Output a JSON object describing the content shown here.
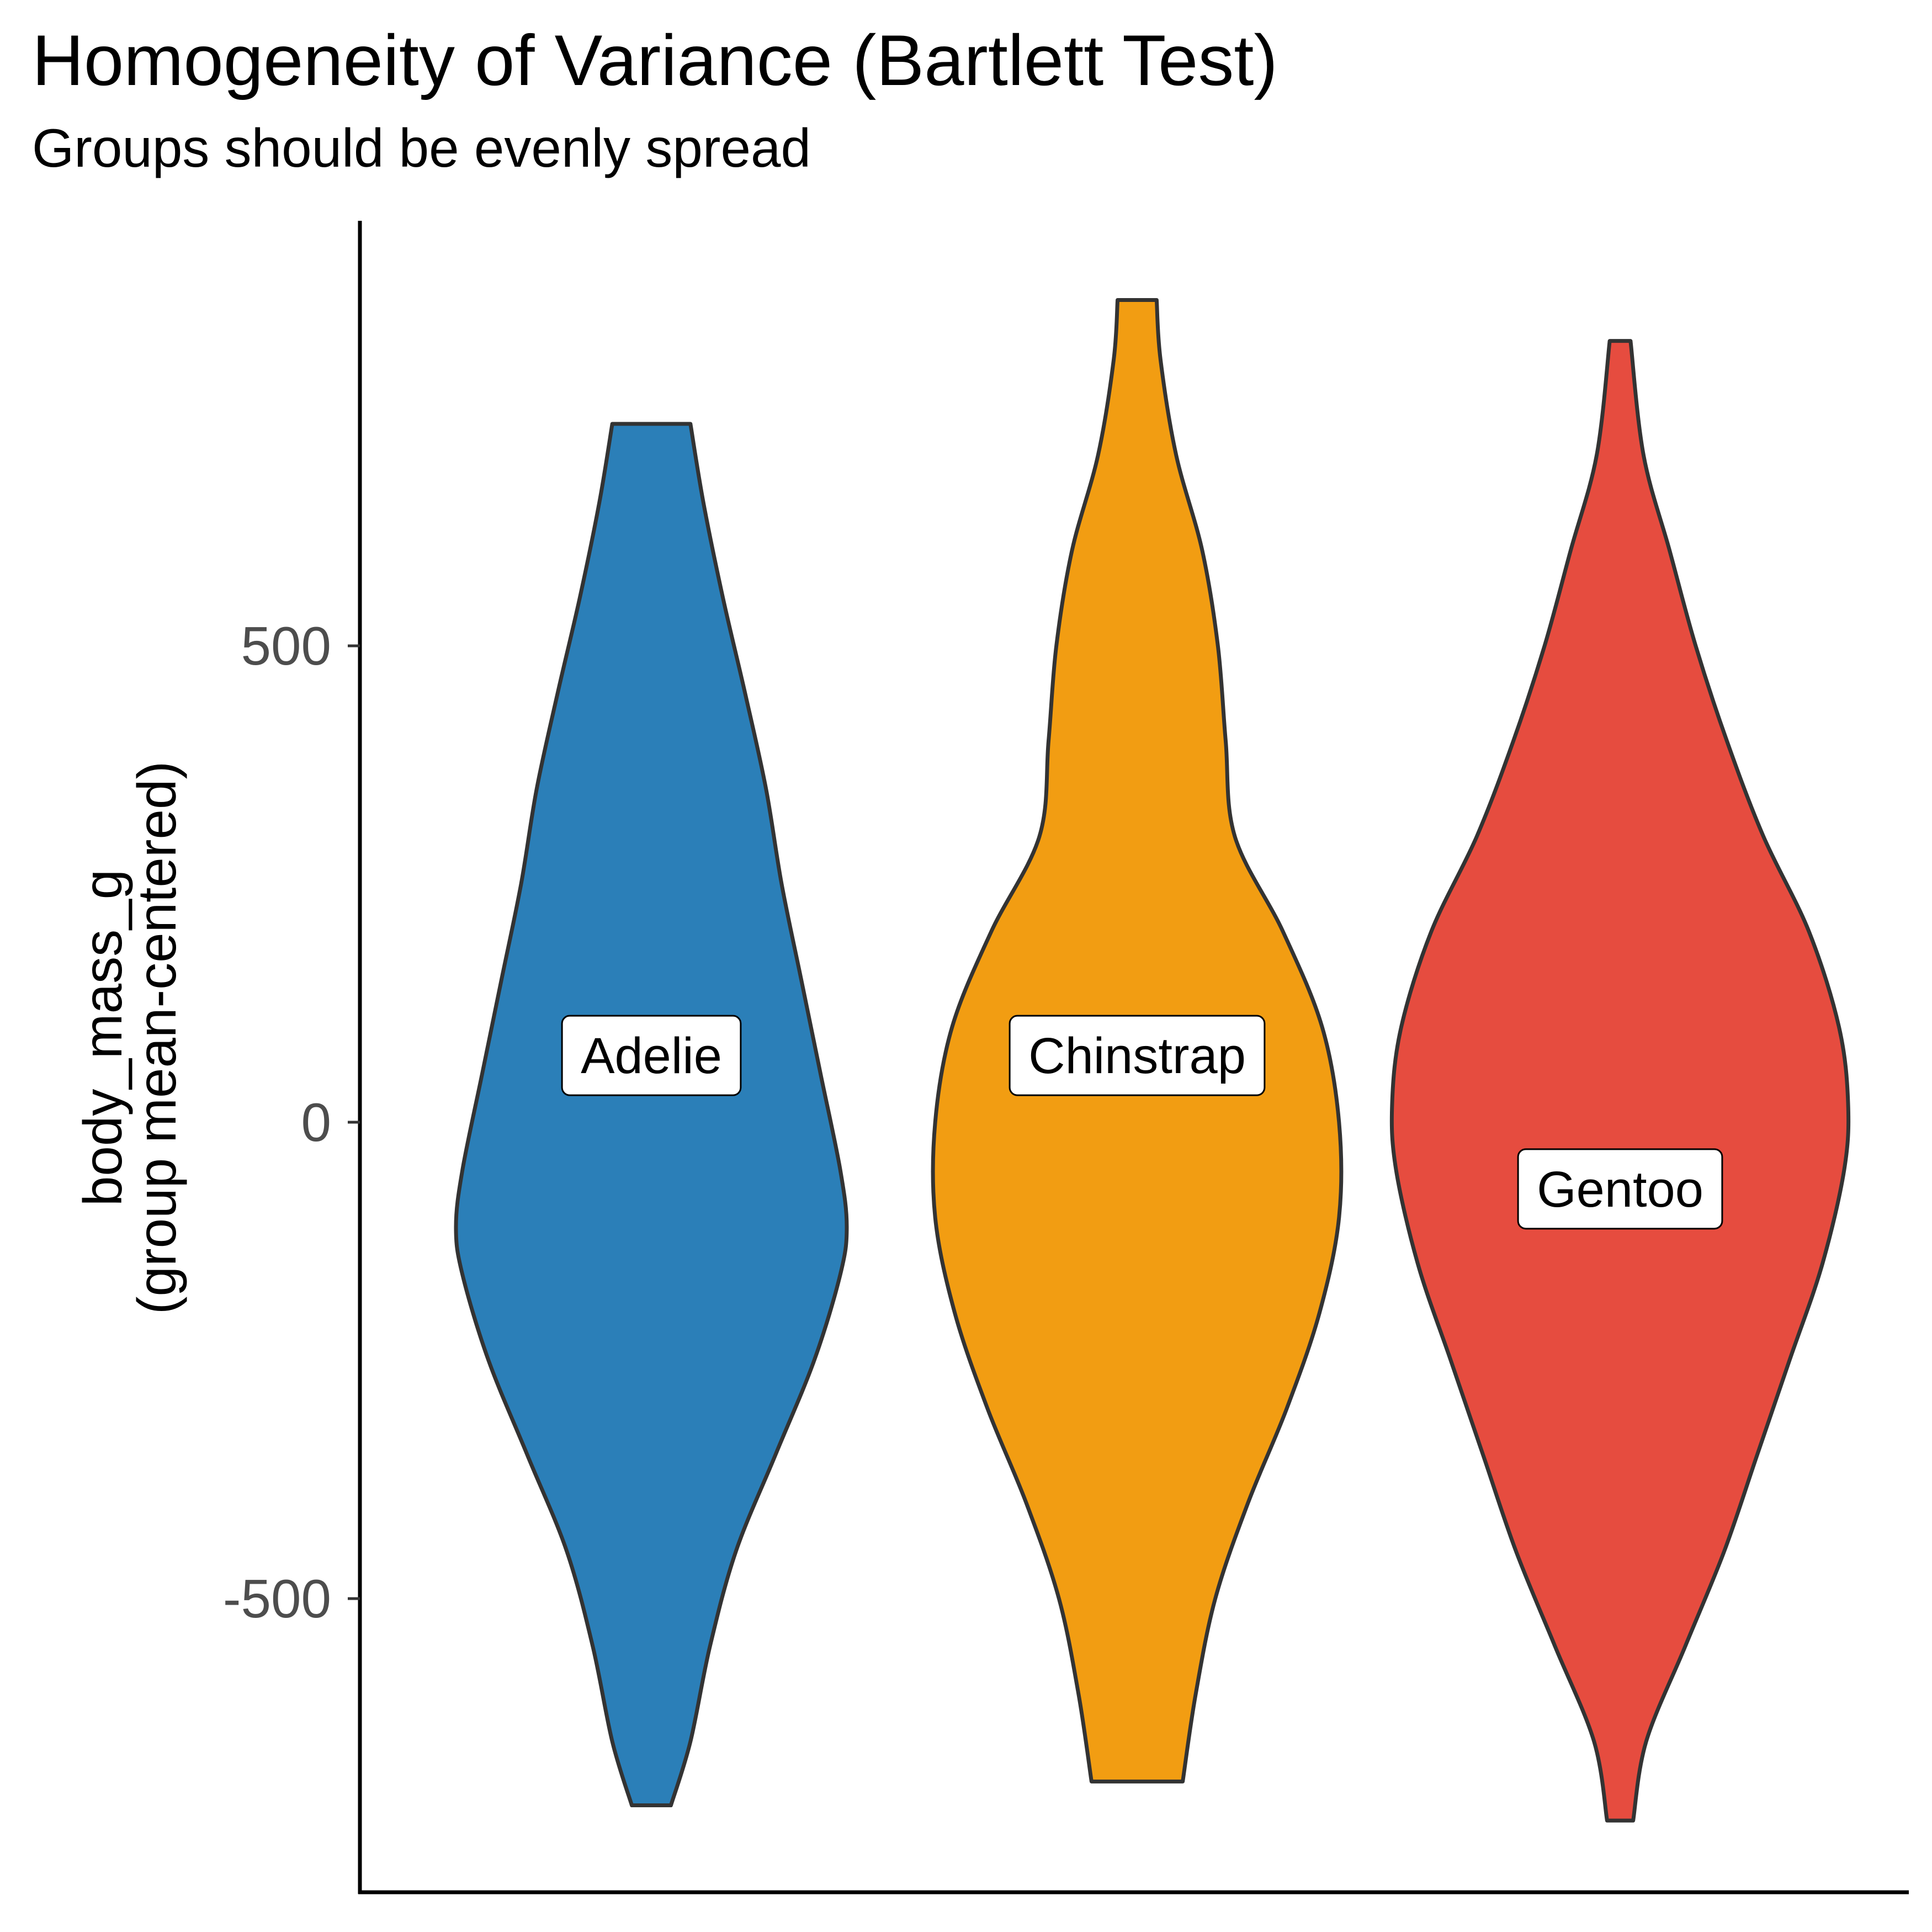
{
  "chart_data": {
    "type": "violin",
    "title": "Homogeneity of Variance (Bartlett Test)",
    "subtitle": "Groups should be evenly spread",
    "ylabel": [
      "body_mass_g",
      "(group mean-centered)"
    ],
    "xlabel": "",
    "ylim": [
      -820,
      950
    ],
    "yticks": [
      500,
      0,
      -500
    ],
    "ytick_labels": [
      "500",
      "0",
      "-500"
    ],
    "grid": false,
    "legend": "none",
    "series": [
      {
        "name": "Adelie",
        "color": "#2B7FB8",
        "min": -717,
        "max": 733,
        "label_y": 70,
        "density": [
          [
            -717,
            0.15
          ],
          [
            -650,
            0.3
          ],
          [
            -550,
            0.45
          ],
          [
            -450,
            0.65
          ],
          [
            -350,
            0.95
          ],
          [
            -250,
            1.25
          ],
          [
            -160,
            1.45
          ],
          [
            -110,
            1.5
          ],
          [
            -50,
            1.45
          ],
          [
            50,
            1.3
          ],
          [
            150,
            1.15
          ],
          [
            250,
            1.0
          ],
          [
            350,
            0.88
          ],
          [
            450,
            0.72
          ],
          [
            550,
            0.55
          ],
          [
            650,
            0.4
          ],
          [
            733,
            0.3
          ]
        ]
      },
      {
        "name": "Chinstrap",
        "color": "#F29D12",
        "min": -692,
        "max": 863,
        "label_y": 70,
        "density": [
          [
            -692,
            0.35
          ],
          [
            -600,
            0.45
          ],
          [
            -500,
            0.6
          ],
          [
            -400,
            0.85
          ],
          [
            -300,
            1.15
          ],
          [
            -200,
            1.4
          ],
          [
            -100,
            1.55
          ],
          [
            0,
            1.55
          ],
          [
            100,
            1.42
          ],
          [
            200,
            1.12
          ],
          [
            300,
            0.75
          ],
          [
            400,
            0.68
          ],
          [
            500,
            0.62
          ],
          [
            600,
            0.5
          ],
          [
            700,
            0.3
          ],
          [
            800,
            0.18
          ],
          [
            863,
            0.15
          ]
        ]
      },
      {
        "name": "Gentoo",
        "color": "#E64C3F",
        "min": -733,
        "max": 820,
        "label_y": -70,
        "density": [
          [
            -733,
            0.1
          ],
          [
            -650,
            0.2
          ],
          [
            -550,
            0.5
          ],
          [
            -450,
            0.8
          ],
          [
            -350,
            1.05
          ],
          [
            -250,
            1.3
          ],
          [
            -150,
            1.55
          ],
          [
            -50,
            1.72
          ],
          [
            20,
            1.75
          ],
          [
            100,
            1.68
          ],
          [
            200,
            1.45
          ],
          [
            300,
            1.1
          ],
          [
            400,
            0.82
          ],
          [
            500,
            0.58
          ],
          [
            600,
            0.38
          ],
          [
            700,
            0.18
          ],
          [
            820,
            0.08
          ]
        ]
      }
    ]
  }
}
